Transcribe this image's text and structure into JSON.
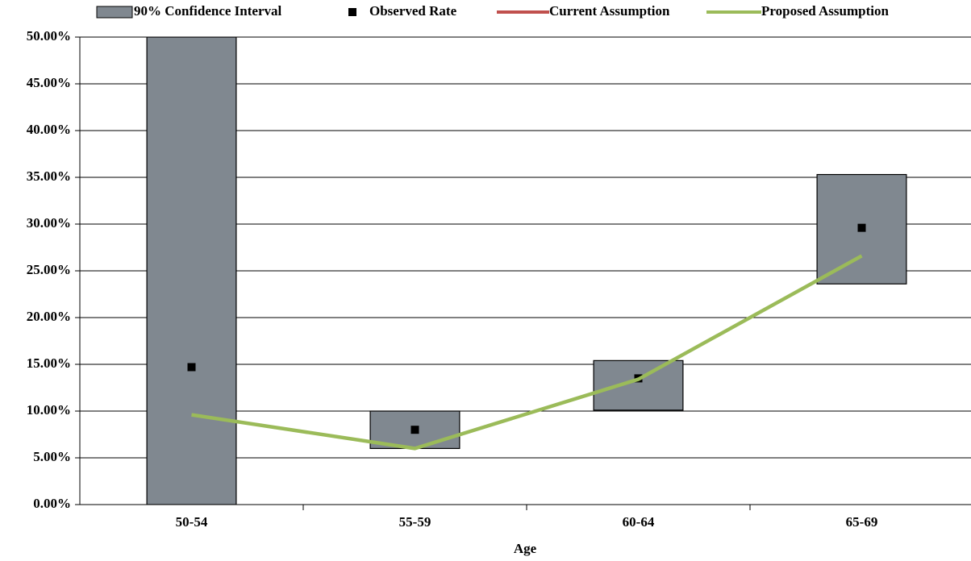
{
  "chart_data": {
    "type": "combo",
    "x_label": "Age",
    "categories": [
      "50-54",
      "55-59",
      "60-64",
      "65-69"
    ],
    "ylim": [
      0,
      50
    ],
    "yticks": [
      {
        "value": 0,
        "label": "0.00%"
      },
      {
        "value": 5,
        "label": "5.00%"
      },
      {
        "value": 10,
        "label": "10.00%"
      },
      {
        "value": 15,
        "label": "15.00%"
      },
      {
        "value": 20,
        "label": "20.00%"
      },
      {
        "value": 25,
        "label": "25.00%"
      },
      {
        "value": 30,
        "label": "30.00%"
      },
      {
        "value": 35,
        "label": "35.00%"
      },
      {
        "value": 40,
        "label": "40.00%"
      },
      {
        "value": 45,
        "label": "45.00%"
      },
      {
        "value": 50,
        "label": "50.00%"
      }
    ],
    "grid": true,
    "legend": "top",
    "series": [
      {
        "name": "90% Confidence Interval",
        "type": "floating_bar",
        "color": "#808890",
        "low": [
          0,
          6.0,
          10.1,
          23.6
        ],
        "high": [
          50,
          10.0,
          15.4,
          35.3
        ]
      },
      {
        "name": "Observed Rate",
        "type": "scatter",
        "color": "#000000",
        "values": [
          14.7,
          8.0,
          13.5,
          29.6
        ]
      },
      {
        "name": "Current Assumption",
        "type": "line",
        "color": "#c0504d",
        "values": [
          null,
          null,
          null,
          null
        ]
      },
      {
        "name": "Proposed Assumption",
        "type": "line",
        "color": "#9bbb59",
        "values": [
          9.6,
          6.0,
          13.4,
          26.6
        ]
      }
    ]
  }
}
